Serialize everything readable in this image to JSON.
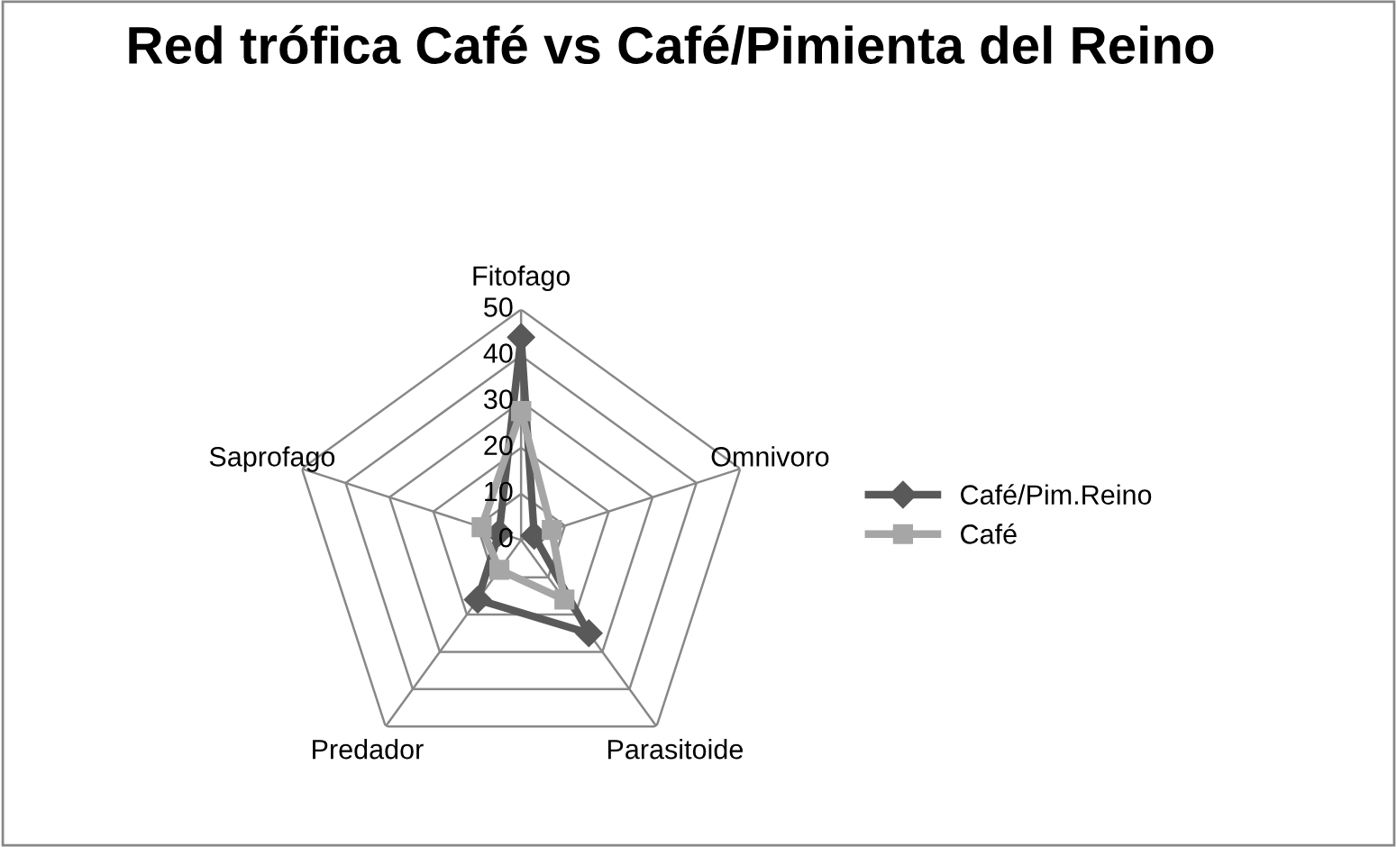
{
  "chart_data": {
    "type": "radar",
    "title": "Red trófica Café vs Café/Pimienta del Reino",
    "categories": [
      "Fitofago",
      "Omnivoro",
      "Parasitoide",
      "Predador",
      "Saprofago"
    ],
    "series": [
      {
        "name": "Café/Pim.Reino",
        "color": "#595959",
        "values": [
          44,
          3,
          25,
          16,
          5
        ],
        "marker": "diamond"
      },
      {
        "name": "Café",
        "color": "#a6a6a6",
        "values": [
          28,
          7,
          16,
          8,
          9
        ],
        "marker": "square"
      }
    ],
    "ylim": [
      0,
      50
    ],
    "yticks": [
      0,
      10,
      20,
      30,
      40,
      50
    ],
    "grid": true,
    "legend": "right"
  }
}
